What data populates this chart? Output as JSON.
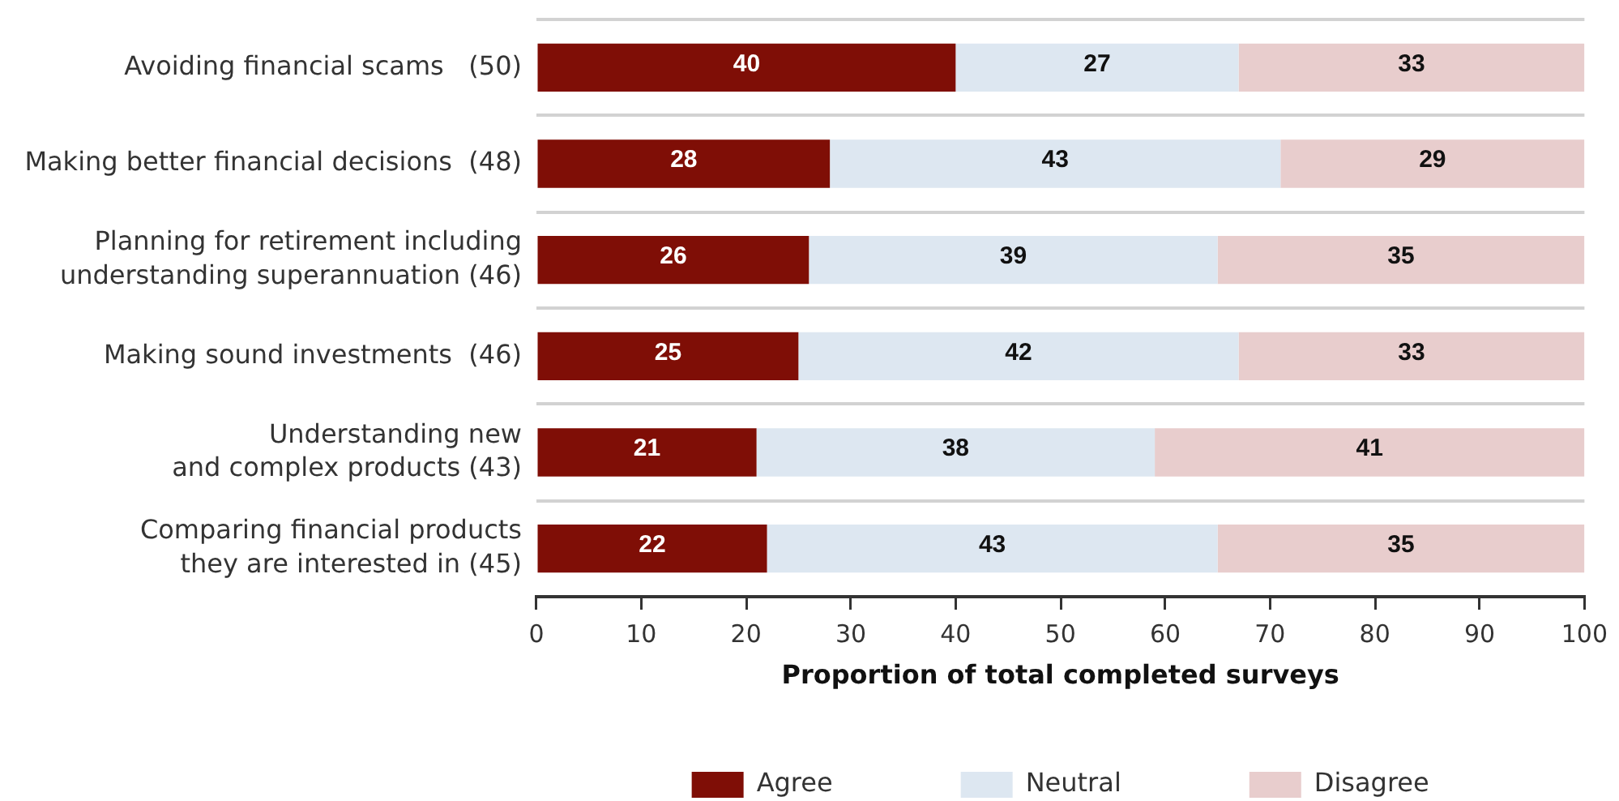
{
  "chart_data": {
    "type": "bar",
    "orientation": "horizontal",
    "stacked": true,
    "categories": [
      "Avoiding financial scams   (50)",
      "Making better financial decisions  (48)",
      "Planning for retirement including\nunderstanding superannuation (46)",
      "Making sound investments  (46)",
      "Understanding new\nand complex products (43)",
      "Comparing financial products\nthey are interested in (45)"
    ],
    "series": [
      {
        "name": "Agree",
        "color": "#7f0e06",
        "values": [
          40,
          28,
          26,
          25,
          21,
          22
        ]
      },
      {
        "name": "Neutral",
        "color": "#dde7f1",
        "values": [
          27,
          43,
          39,
          42,
          38,
          43
        ]
      },
      {
        "name": "Disagree",
        "color": "#e8cdcd",
        "values": [
          33,
          29,
          35,
          33,
          41,
          35
        ]
      }
    ],
    "xlabel": "Proportion of total completed surveys",
    "xlim": [
      0,
      100
    ],
    "xticks": [
      0,
      10,
      20,
      30,
      40,
      50,
      60,
      70,
      80,
      90,
      100
    ],
    "grid": "y",
    "legend": "bottom",
    "data_labels": true
  }
}
